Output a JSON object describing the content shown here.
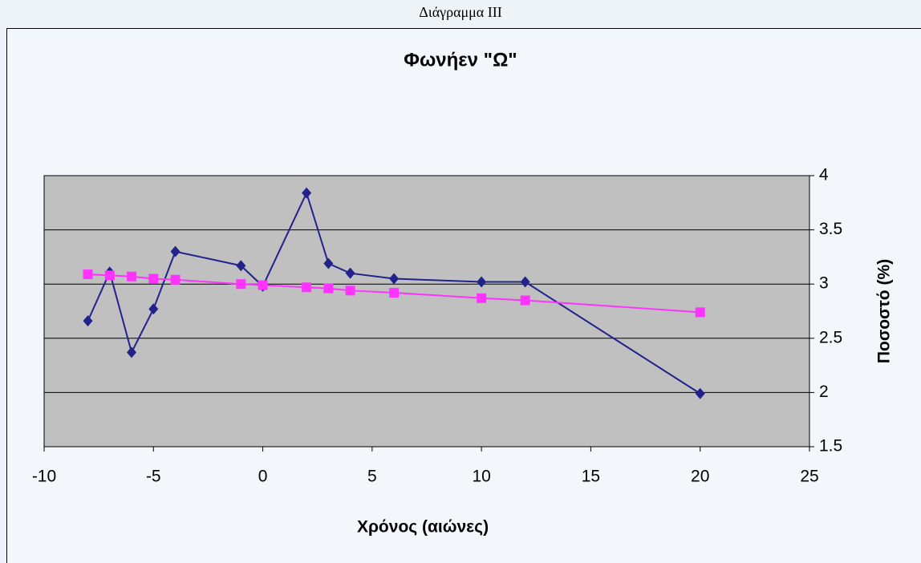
{
  "caption": "Διάγραμμα ΙΙΙ",
  "chart_data": {
    "type": "line",
    "title": "Φωνήεν \"Ω\"",
    "x_label": "Χρόνος (αιώνες)",
    "y_label": "Ποσοστό (%)",
    "x": [
      -8,
      -7,
      -6,
      -5,
      -4,
      -1,
      0,
      2,
      3,
      4,
      6,
      10,
      12,
      20
    ],
    "series": [
      {
        "color": "#22228c",
        "marker": "diamond",
        "values": [
          2.66,
          3.11,
          2.37,
          2.77,
          3.3,
          3.17,
          2.98,
          3.84,
          3.19,
          3.1,
          3.05,
          3.02,
          3.02,
          1.99
        ]
      },
      {
        "color": "#ff33ff",
        "marker": "square",
        "values": [
          3.09,
          3.08,
          3.07,
          3.05,
          3.04,
          3.0,
          2.99,
          2.97,
          2.96,
          2.94,
          2.92,
          2.87,
          2.85,
          2.74
        ]
      }
    ],
    "xlim": [
      -10,
      25
    ],
    "xticks": [
      -10,
      -5,
      0,
      5,
      10,
      15,
      20,
      25
    ],
    "ylim": [
      1.5,
      4
    ],
    "yticks": [
      1.5,
      2,
      2.5,
      3,
      3.5,
      4
    ],
    "grid": true,
    "y_axis_side": "right",
    "plot_background": "#c0c0c0"
  }
}
